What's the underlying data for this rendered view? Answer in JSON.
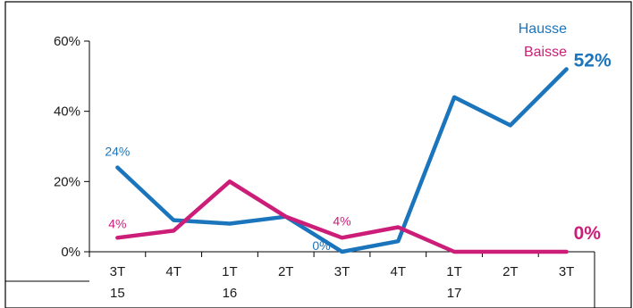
{
  "chart_data": {
    "type": "line",
    "categories": [
      "3T 15",
      "4T",
      "1T 16",
      "2T",
      "3T",
      "4T",
      "1T 17",
      "2T",
      "3T"
    ],
    "category_lines": [
      [
        "3T",
        "15"
      ],
      [
        "4T"
      ],
      [
        "1T",
        "16"
      ],
      [
        "2T"
      ],
      [
        "3T"
      ],
      [
        "4T"
      ],
      [
        "1T",
        "17"
      ],
      [
        "2T"
      ],
      [
        "3T"
      ]
    ],
    "ylim": [
      0,
      60
    ],
    "yticks": [
      0,
      20,
      40,
      60
    ],
    "ytick_labels": [
      "0%",
      "20%",
      "40%",
      "60%"
    ],
    "legend_position": "top-right",
    "series": [
      {
        "name": "Hausse",
        "color": "#1a75bc",
        "values": [
          24,
          9,
          8,
          10,
          0,
          3,
          44,
          36,
          52
        ]
      },
      {
        "name": "Baisse",
        "color": "#cc1d78",
        "values": [
          4,
          6,
          20,
          10,
          4,
          7,
          0,
          0,
          0
        ]
      }
    ],
    "annotations": [
      {
        "series": 0,
        "index": 0,
        "text": "24%",
        "style": "small"
      },
      {
        "series": 0,
        "index": 4,
        "text": "0%",
        "style": "small"
      },
      {
        "series": 0,
        "index": 8,
        "text": "52%",
        "style": "big"
      },
      {
        "series": 1,
        "index": 0,
        "text": "4%",
        "style": "small"
      },
      {
        "series": 1,
        "index": 4,
        "text": "4%",
        "style": "small"
      },
      {
        "series": 1,
        "index": 8,
        "text": "0%",
        "style": "big"
      }
    ]
  }
}
